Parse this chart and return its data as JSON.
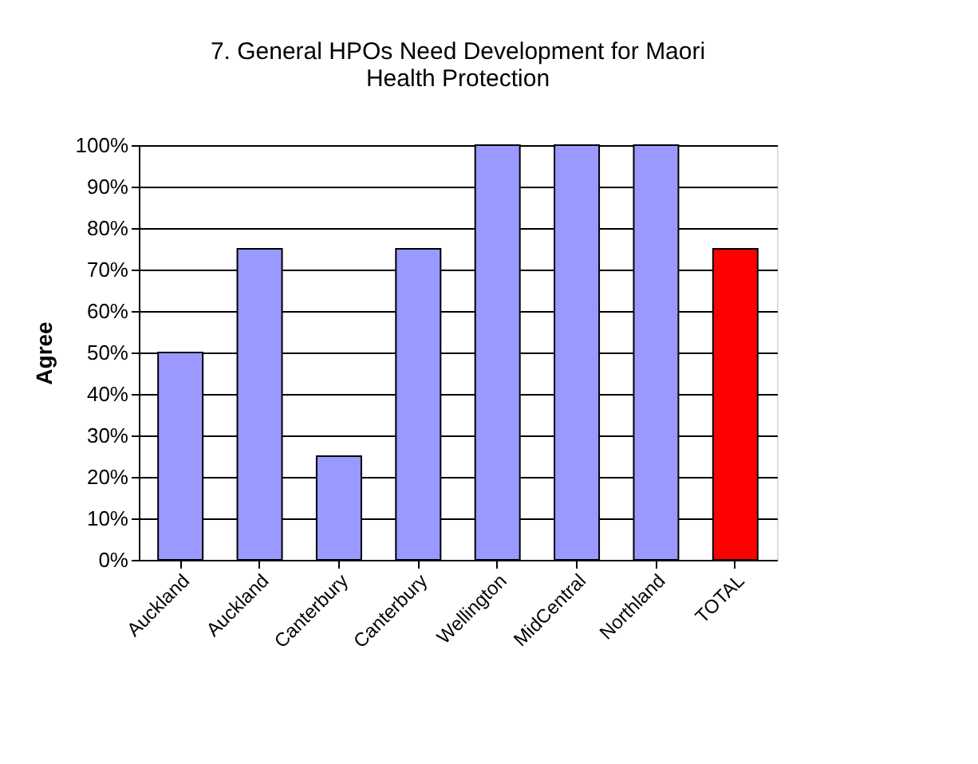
{
  "chart_data": {
    "type": "bar",
    "title": "7. General HPOs Need Development for Maori Health Protection",
    "ylabel": "Agree",
    "categories": [
      "Auckland",
      "Auckland",
      "Canterbury",
      "Canterbury",
      "Wellington",
      "MidCentral",
      "Northland",
      "TOTAL"
    ],
    "values": [
      50,
      75,
      25,
      75,
      100,
      100,
      100,
      75
    ],
    "colors": [
      "#9999ff",
      "#9999ff",
      "#9999ff",
      "#9999ff",
      "#9999ff",
      "#9999ff",
      "#9999ff",
      "#ff0000"
    ],
    "ylim": [
      0,
      100
    ],
    "yticks": [
      {
        "value": 0,
        "label": "0%"
      },
      {
        "value": 10,
        "label": "10%"
      },
      {
        "value": 20,
        "label": "20%"
      },
      {
        "value": 30,
        "label": "30%"
      },
      {
        "value": 40,
        "label": "40%"
      },
      {
        "value": 50,
        "label": "50%"
      },
      {
        "value": 60,
        "label": "60%"
      },
      {
        "value": 70,
        "label": "70%"
      },
      {
        "value": 80,
        "label": "80%"
      },
      {
        "value": 90,
        "label": "90%"
      },
      {
        "value": 100,
        "label": "100%"
      }
    ],
    "grid": "y",
    "legend": false
  }
}
